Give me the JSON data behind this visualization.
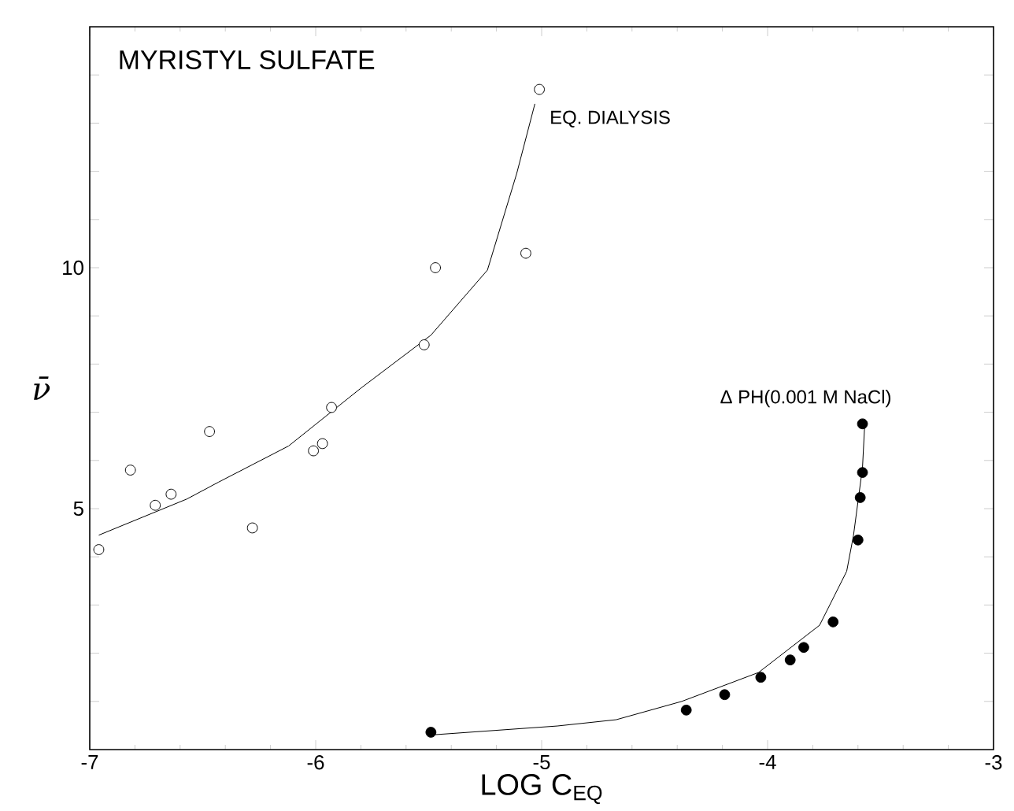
{
  "chart_data": {
    "type": "scatter",
    "title": "MYRISTYL SULFATE",
    "xlabel": "LOG C$_{EQ}$",
    "ylabel": "ν̄",
    "xlim": [
      -7,
      -3
    ],
    "ylim": [
      0,
      15
    ],
    "xticks": [
      -7,
      -6,
      -5,
      -4,
      -3
    ],
    "yticks": [
      {
        "value": 1,
        "label": null
      },
      {
        "value": 2,
        "label": null
      },
      {
        "value": 3,
        "label": null
      },
      {
        "value": 4,
        "label": null
      },
      5,
      {
        "value": 6,
        "label": null
      },
      {
        "value": 7,
        "label": null
      },
      {
        "value": 8,
        "label": null
      },
      {
        "value": 9,
        "label": null
      },
      10,
      {
        "value": 11,
        "label": null
      },
      {
        "value": 12,
        "label": null
      },
      {
        "value": 13,
        "label": null
      },
      {
        "value": 14,
        "label": null
      }
    ],
    "grid": false,
    "series": [
      {
        "name": "EQ. DIALYSIS",
        "marker": "circle",
        "color": "#000000",
        "x": [
          -6.96,
          -6.82,
          -6.71,
          -6.64,
          -6.47,
          -6.28,
          -6.01,
          -5.97,
          -5.93,
          -5.52,
          -5.47,
          -5.07,
          -5.01
        ],
        "values": [
          4.15,
          5.8,
          5.07,
          5.3,
          6.6,
          4.6,
          6.2,
          6.35,
          7.1,
          8.4,
          10.0,
          10.3,
          13.7
        ]
      },
      {
        "type": "line",
        "marker": "none",
        "color": "#000000",
        "x": [
          -6.96,
          -6.57,
          -6.43,
          -6.12,
          -5.8,
          -5.49,
          -5.24,
          -5.11,
          -5.03
        ],
        "values": [
          4.45,
          5.2,
          5.55,
          6.3,
          7.5,
          8.6,
          9.95,
          11.96,
          13.4
        ]
      },
      {
        "name": "Δ PH(0.001 M NaCl)",
        "marker": "circle",
        "color": "#000000",
        "x": [
          -5.49,
          -4.36,
          -4.19,
          -4.03,
          -3.9,
          -3.84,
          -3.71,
          -3.6,
          -3.59,
          -3.58,
          -3.58
        ],
        "values": [
          0.36,
          0.82,
          1.14,
          1.5,
          1.86,
          2.12,
          2.65,
          4.35,
          5.23,
          5.75,
          6.76
        ]
      },
      {
        "type": "line",
        "marker": "none",
        "color": "#000000",
        "x": [
          -5.5,
          -4.93,
          -4.67,
          -4.38,
          -4.04,
          -3.77,
          -3.65,
          -3.62,
          -3.58,
          -3.57
        ],
        "values": [
          0.3,
          0.49,
          0.62,
          1.0,
          1.6,
          2.58,
          3.7,
          4.44,
          5.85,
          6.76
        ]
      }
    ]
  }
}
